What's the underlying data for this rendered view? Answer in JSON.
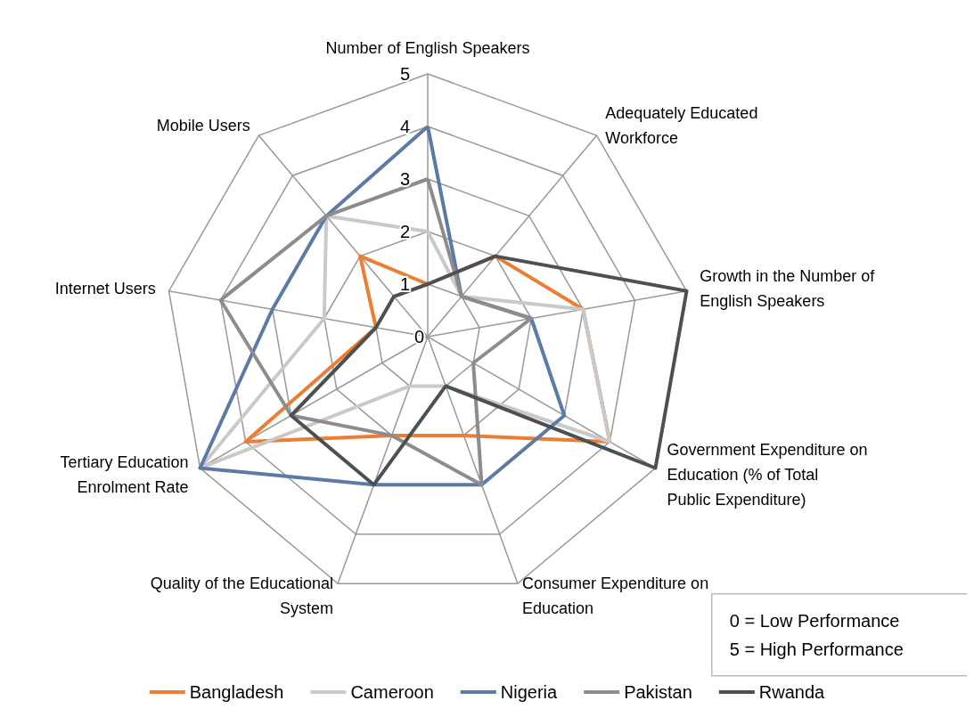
{
  "chart_data": {
    "type": "radar",
    "categories": [
      "Number of English Speakers",
      "Adequately Educated Workforce",
      "Growth in the Number of English Speakers",
      "Government Expenditure on Education (% of Total Public Expenditure)",
      "Consumer Expenditure on Education",
      "Quality of the Educational System",
      "Tertiary Education Enrolment Rate",
      "Internet Users",
      "Mobile Users"
    ],
    "series": [
      {
        "name": "Bangladesh",
        "color": "#ed7d31",
        "values": [
          1,
          2,
          3,
          4,
          2,
          2,
          4,
          1,
          2
        ]
      },
      {
        "name": "Cameroon",
        "color": "#c9c9c9",
        "values": [
          2,
          1,
          3,
          4,
          1,
          1,
          5,
          2,
          3
        ]
      },
      {
        "name": "Nigeria",
        "color": "#5b7ba6",
        "values": [
          4,
          1,
          2,
          3,
          3,
          3,
          5,
          3,
          3
        ]
      },
      {
        "name": "Pakistan",
        "color": "#8c8c8c",
        "values": [
          3,
          1,
          2,
          1,
          3,
          2,
          3,
          4,
          3
        ]
      },
      {
        "name": "Rwanda",
        "color": "#4a5155",
        "values": [
          1,
          2,
          5,
          5,
          1,
          3,
          3,
          1,
          1
        ]
      }
    ],
    "ylim": [
      0,
      5
    ],
    "yticks": [
      0,
      1,
      2,
      3,
      4,
      5
    ],
    "legend": "bottom",
    "grid": true,
    "annotations": [
      "0 = Low Performance\n5 = High Performance"
    ]
  }
}
